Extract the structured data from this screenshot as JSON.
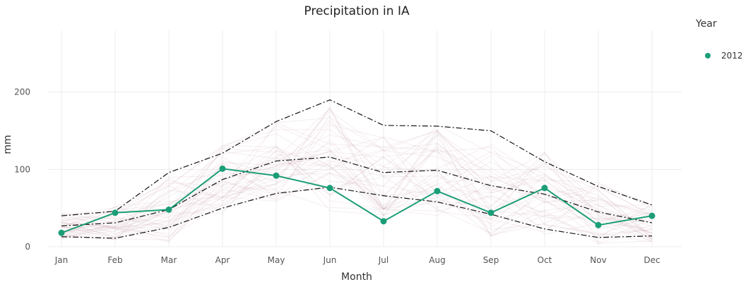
{
  "chart_data": {
    "type": "line",
    "title": "Precipitation in IA",
    "xlabel": "Month",
    "ylabel": "mm",
    "categories": [
      "Jan",
      "Feb",
      "Mar",
      "Apr",
      "May",
      "Jun",
      "Jul",
      "Aug",
      "Sep",
      "Oct",
      "Nov",
      "Dec"
    ],
    "ylim": [
      0,
      280
    ],
    "yticks": [
      0,
      100,
      200
    ],
    "grid": true,
    "legend": {
      "title": "Year",
      "position": "right"
    },
    "series": [
      {
        "name": "2012",
        "color": "#1b9e77",
        "values": [
          18,
          44,
          48,
          101,
          92,
          76,
          33,
          72,
          44,
          76,
          28,
          40
        ]
      }
    ],
    "reference_lines": [
      {
        "values": [
          40,
          46,
          96,
          121,
          162,
          190,
          157,
          156,
          150,
          110,
          78,
          54
        ]
      },
      {
        "values": [
          27,
          31,
          48,
          87,
          111,
          116,
          96,
          99,
          79,
          68,
          45,
          31
        ]
      },
      {
        "values": [
          13,
          11,
          25,
          50,
          69,
          77,
          66,
          58,
          42,
          23,
          12,
          14
        ]
      }
    ],
    "background_lines": {
      "count": 40,
      "color": "#c9a3aa"
    }
  }
}
